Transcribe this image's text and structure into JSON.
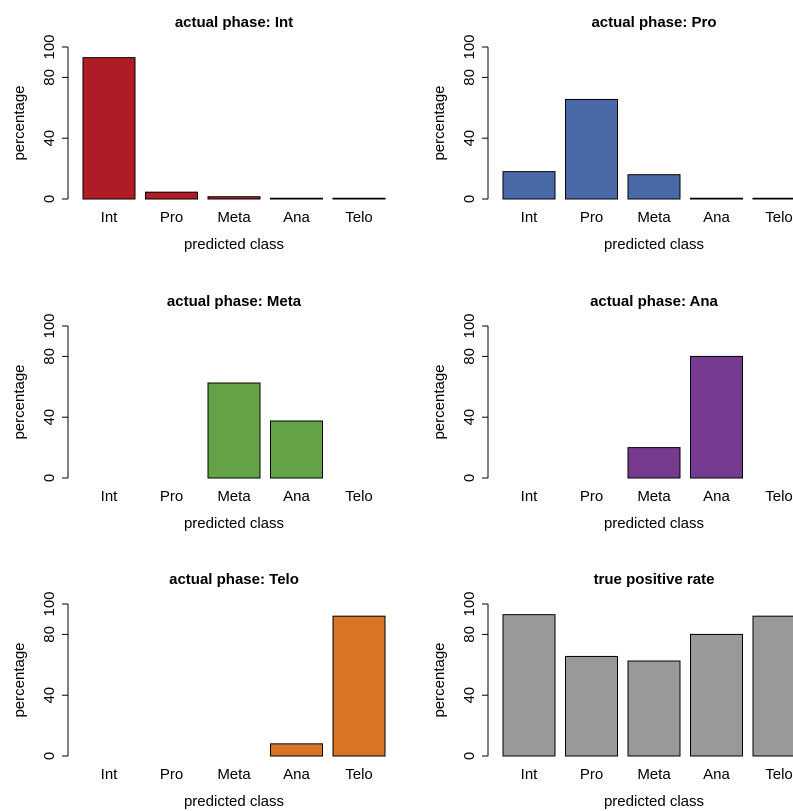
{
  "chart_data": [
    {
      "type": "bar",
      "title": "actual phase: Int",
      "xlabel": "predicted class",
      "ylabel": "percentage",
      "categories": [
        "Int",
        "Pro",
        "Meta",
        "Ana",
        "Telo"
      ],
      "values": [
        93,
        4.5,
        1.5,
        0.5,
        0.5
      ],
      "ylim": [
        0,
        100
      ],
      "yticks": [
        "0",
        "40",
        "80",
        "100"
      ],
      "color": "#b01c25"
    },
    {
      "type": "bar",
      "title": "actual phase: Pro",
      "xlabel": "predicted class",
      "ylabel": "percentage",
      "categories": [
        "Int",
        "Pro",
        "Meta",
        "Ana",
        "Telo"
      ],
      "values": [
        18,
        65.5,
        16,
        0.5,
        0.5
      ],
      "ylim": [
        0,
        100
      ],
      "yticks": [
        "0",
        "40",
        "80",
        "100"
      ],
      "color": "#4a69a8"
    },
    {
      "type": "bar",
      "title": "actual phase: Meta",
      "xlabel": "predicted class",
      "ylabel": "percentage",
      "categories": [
        "Int",
        "Pro",
        "Meta",
        "Ana",
        "Telo"
      ],
      "values": [
        0,
        0,
        62.5,
        37.5,
        0
      ],
      "ylim": [
        0,
        100
      ],
      "yticks": [
        "0",
        "40",
        "80",
        "100"
      ],
      "color": "#63a345"
    },
    {
      "type": "bar",
      "title": "actual phase: Ana",
      "xlabel": "predicted class",
      "ylabel": "percentage",
      "categories": [
        "Int",
        "Pro",
        "Meta",
        "Ana",
        "Telo"
      ],
      "values": [
        0,
        0,
        20,
        80,
        0
      ],
      "ylim": [
        0,
        100
      ],
      "yticks": [
        "0",
        "40",
        "80",
        "100"
      ],
      "color": "#763a91"
    },
    {
      "type": "bar",
      "title": "actual phase: Telo",
      "xlabel": "predicted class",
      "ylabel": "percentage",
      "categories": [
        "Int",
        "Pro",
        "Meta",
        "Ana",
        "Telo"
      ],
      "values": [
        0,
        0,
        0,
        8,
        92
      ],
      "ylim": [
        0,
        100
      ],
      "yticks": [
        "0",
        "40",
        "80",
        "100"
      ],
      "color": "#d97424"
    },
    {
      "type": "bar",
      "title": "true positive rate",
      "xlabel": "predicted class",
      "ylabel": "percentage",
      "categories": [
        "Int",
        "Pro",
        "Meta",
        "Ana",
        "Telo"
      ],
      "values": [
        93,
        65.5,
        62.5,
        80,
        92
      ],
      "ylim": [
        0,
        100
      ],
      "yticks": [
        "0",
        "40",
        "80",
        "100"
      ],
      "color": "#999999"
    }
  ]
}
